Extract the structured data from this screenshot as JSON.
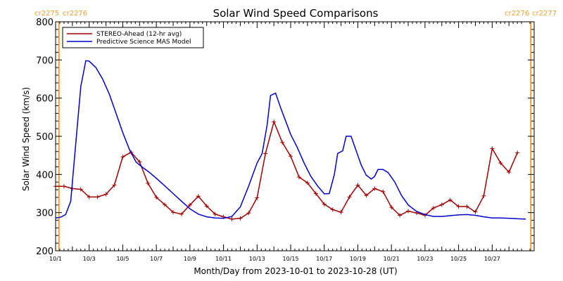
{
  "chart_data": {
    "type": "line",
    "title": "Solar Wind Speed Comparisons",
    "xlabel": "Month/Day from 2023-10-01 to 2023-10-28 (UT)",
    "ylabel": "Solar Wind Speed (km/s)",
    "xlim": [
      0,
      28.5
    ],
    "ylim": [
      200,
      800
    ],
    "y_ticks": [
      200,
      300,
      400,
      500,
      600,
      700,
      800
    ],
    "x_ticks": [
      {
        "x": 0,
        "label": "10/1"
      },
      {
        "x": 2,
        "label": "10/3"
      },
      {
        "x": 4,
        "label": "10/5"
      },
      {
        "x": 6,
        "label": "10/7"
      },
      {
        "x": 8,
        "label": "10/9"
      },
      {
        "x": 10,
        "label": "10/11"
      },
      {
        "x": 12,
        "label": "10/13"
      },
      {
        "x": 14,
        "label": "10/15"
      },
      {
        "x": 16,
        "label": "10/17"
      },
      {
        "x": 18,
        "label": "10/19"
      },
      {
        "x": 20,
        "label": "10/21"
      },
      {
        "x": 22,
        "label": "10/23"
      },
      {
        "x": 24,
        "label": "10/25"
      },
      {
        "x": 26,
        "label": "10/27"
      }
    ],
    "carrington": {
      "left_x": 0.2,
      "right_x": 28.3,
      "left_labels": [
        "cr2275",
        "cr2276"
      ],
      "right_labels": [
        "cr2276",
        "cr2277"
      ],
      "color": "#f0a030"
    },
    "legend_position": "top-left",
    "series": [
      {
        "name": "STEREO-Ahead (12-hr avg)",
        "color": "#a00000",
        "markers": true,
        "points": [
          [
            0.0,
            369
          ],
          [
            0.5,
            369
          ],
          [
            1.0,
            363
          ],
          [
            1.5,
            361
          ],
          [
            2.0,
            341
          ],
          [
            2.5,
            341
          ],
          [
            3.0,
            348
          ],
          [
            3.5,
            372
          ],
          [
            4.0,
            446
          ],
          [
            4.5,
            458
          ],
          [
            5.0,
            433
          ],
          [
            5.5,
            377
          ],
          [
            6.0,
            340
          ],
          [
            6.5,
            321
          ],
          [
            7.0,
            301
          ],
          [
            7.5,
            296
          ],
          [
            8.0,
            320
          ],
          [
            8.5,
            343
          ],
          [
            9.0,
            317
          ],
          [
            9.5,
            296
          ],
          [
            10.0,
            289
          ],
          [
            10.5,
            283
          ],
          [
            11.0,
            285
          ],
          [
            11.5,
            299
          ],
          [
            12.0,
            339
          ],
          [
            12.5,
            455
          ],
          [
            13.0,
            538
          ],
          [
            13.5,
            484
          ],
          [
            14.0,
            448
          ],
          [
            14.5,
            393
          ],
          [
            15.0,
            378
          ],
          [
            15.5,
            350
          ],
          [
            16.0,
            322
          ],
          [
            16.5,
            308
          ],
          [
            17.0,
            301
          ],
          [
            17.5,
            341
          ],
          [
            18.0,
            372
          ],
          [
            18.5,
            345
          ],
          [
            19.0,
            363
          ],
          [
            19.5,
            355
          ],
          [
            20.0,
            314
          ],
          [
            20.5,
            293
          ],
          [
            21.0,
            304
          ],
          [
            21.5,
            299
          ],
          [
            22.0,
            293
          ],
          [
            22.5,
            312
          ],
          [
            23.0,
            321
          ],
          [
            23.5,
            333
          ],
          [
            24.0,
            316
          ],
          [
            24.5,
            316
          ],
          [
            25.0,
            302
          ],
          [
            25.5,
            344
          ],
          [
            26.0,
            468
          ],
          [
            26.5,
            430
          ],
          [
            27.0,
            406
          ],
          [
            27.5,
            457
          ]
        ]
      },
      {
        "name": "Predictive Science MAS Model",
        "color": "#0000cc",
        "markers": false,
        "points": [
          [
            0.0,
            286
          ],
          [
            0.3,
            288
          ],
          [
            0.6,
            295
          ],
          [
            0.9,
            330
          ],
          [
            1.2,
            480
          ],
          [
            1.5,
            630
          ],
          [
            1.8,
            698
          ],
          [
            2.0,
            697
          ],
          [
            2.4,
            680
          ],
          [
            2.8,
            650
          ],
          [
            3.2,
            610
          ],
          [
            3.6,
            560
          ],
          [
            4.0,
            510
          ],
          [
            4.4,
            465
          ],
          [
            4.8,
            432
          ],
          [
            5.2,
            418
          ],
          [
            5.6,
            405
          ],
          [
            6.0,
            390
          ],
          [
            6.5,
            370
          ],
          [
            7.0,
            350
          ],
          [
            7.5,
            330
          ],
          [
            8.0,
            310
          ],
          [
            8.5,
            296
          ],
          [
            9.0,
            289
          ],
          [
            9.5,
            286
          ],
          [
            10.0,
            285
          ],
          [
            10.5,
            290
          ],
          [
            11.0,
            315
          ],
          [
            11.5,
            370
          ],
          [
            12.0,
            430
          ],
          [
            12.3,
            455
          ],
          [
            12.6,
            530
          ],
          [
            12.8,
            607
          ],
          [
            13.1,
            613
          ],
          [
            13.4,
            575
          ],
          [
            13.7,
            540
          ],
          [
            14.0,
            505
          ],
          [
            14.4,
            470
          ],
          [
            14.8,
            430
          ],
          [
            15.2,
            395
          ],
          [
            15.6,
            370
          ],
          [
            16.0,
            349
          ],
          [
            16.3,
            350
          ],
          [
            16.6,
            400
          ],
          [
            16.8,
            455
          ],
          [
            17.1,
            462
          ],
          [
            17.3,
            500
          ],
          [
            17.6,
            500
          ],
          [
            17.9,
            462
          ],
          [
            18.2,
            425
          ],
          [
            18.5,
            398
          ],
          [
            18.8,
            388
          ],
          [
            19.0,
            395
          ],
          [
            19.2,
            413
          ],
          [
            19.5,
            413
          ],
          [
            19.8,
            405
          ],
          [
            20.2,
            380
          ],
          [
            20.6,
            345
          ],
          [
            21.0,
            320
          ],
          [
            21.5,
            303
          ],
          [
            22.0,
            295
          ],
          [
            22.5,
            290
          ],
          [
            23.0,
            290
          ],
          [
            23.5,
            292
          ],
          [
            24.0,
            294
          ],
          [
            24.5,
            295
          ],
          [
            25.0,
            293
          ],
          [
            25.5,
            289
          ],
          [
            26.0,
            286
          ],
          [
            26.5,
            286
          ],
          [
            27.0,
            285
          ],
          [
            27.5,
            284
          ],
          [
            28.0,
            283
          ]
        ]
      }
    ]
  }
}
